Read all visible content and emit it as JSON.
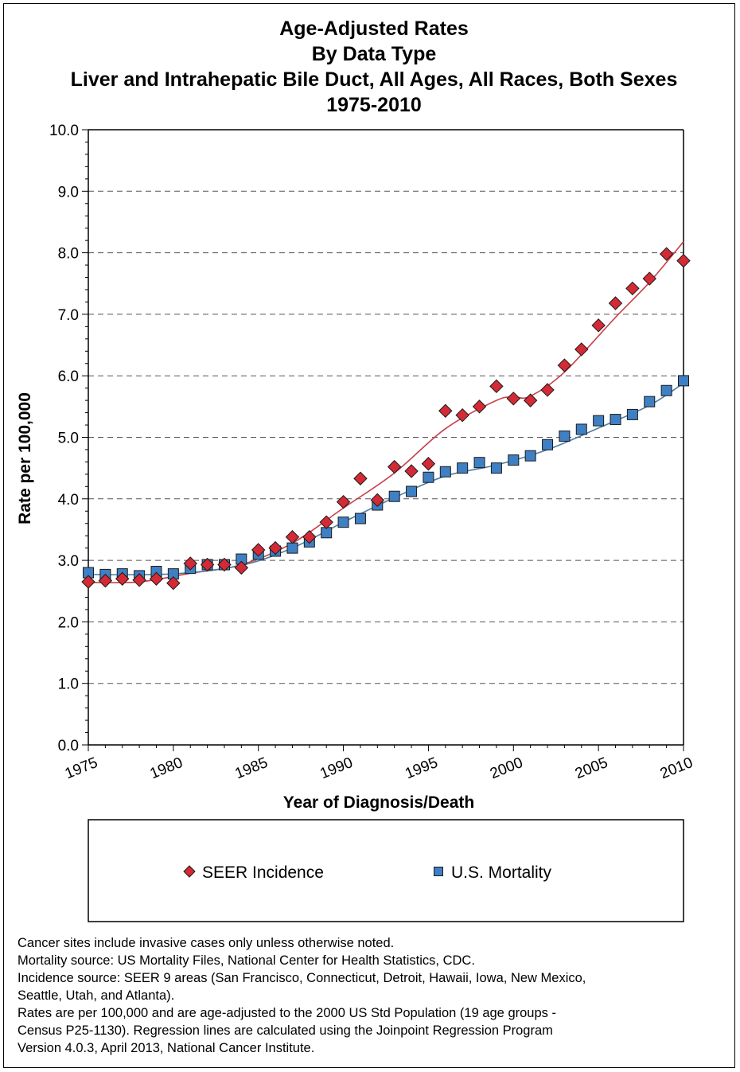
{
  "chart_data": {
    "type": "scatter",
    "title_lines": [
      "Age-Adjusted  Rates",
      "By Data Type",
      "Liver and Intrahepatic Bile Duct, All Ages, All Races, Both Sexes",
      "1975-2010"
    ],
    "xlabel": "Year of Diagnosis/Death",
    "ylabel": "Rate per 100,000",
    "xlim": [
      1975,
      2010
    ],
    "ylim": [
      0,
      10
    ],
    "x_ticks": [
      "1975",
      "1980",
      "1985",
      "1990",
      "1995",
      "2000",
      "2005",
      "2010"
    ],
    "y_ticks": [
      "0.0",
      "1.0",
      "2.0",
      "3.0",
      "4.0",
      "5.0",
      "6.0",
      "7.0",
      "8.0",
      "9.0",
      "10.0"
    ],
    "grid": "horizontal dashed",
    "legend_position": "bottom",
    "x": [
      1975,
      1976,
      1977,
      1978,
      1979,
      1980,
      1981,
      1982,
      1983,
      1984,
      1985,
      1986,
      1987,
      1988,
      1989,
      1990,
      1991,
      1992,
      1993,
      1994,
      1995,
      1996,
      1997,
      1998,
      1999,
      2000,
      2001,
      2002,
      2003,
      2004,
      2005,
      2006,
      2007,
      2008,
      2009,
      2010
    ],
    "series": [
      {
        "name": "SEER Incidence",
        "marker": "diamond",
        "color": "#d42a36",
        "values": [
          2.65,
          2.67,
          2.7,
          2.68,
          2.7,
          2.63,
          2.95,
          2.93,
          2.93,
          2.88,
          3.17,
          3.2,
          3.38,
          3.38,
          3.62,
          3.95,
          4.33,
          3.98,
          4.52,
          4.45,
          4.57,
          5.43,
          5.36,
          5.5,
          5.83,
          5.63,
          5.6,
          5.77,
          6.17,
          6.43,
          6.82,
          7.18,
          7.42,
          7.58,
          7.98,
          7.87
        ],
        "fit": [
          [
            1975,
            2.64
          ],
          [
            1978,
            2.65
          ],
          [
            1981,
            2.79
          ],
          [
            1984,
            2.93
          ],
          [
            1987,
            3.28
          ],
          [
            1990,
            3.85
          ],
          [
            1993,
            4.42
          ],
          [
            1996,
            5.14
          ],
          [
            1999,
            5.6
          ],
          [
            2000,
            5.65
          ],
          [
            2001,
            5.67
          ],
          [
            2003,
            6.06
          ],
          [
            2006,
            6.95
          ],
          [
            2008,
            7.52
          ],
          [
            2010,
            8.18
          ]
        ]
      },
      {
        "name": "U.S. Mortality",
        "marker": "square",
        "color": "#3f7fc3",
        "values": [
          2.8,
          2.77,
          2.78,
          2.75,
          2.82,
          2.78,
          2.87,
          2.93,
          2.93,
          3.02,
          3.1,
          3.15,
          3.2,
          3.3,
          3.45,
          3.62,
          3.68,
          3.9,
          4.04,
          4.12,
          4.35,
          4.44,
          4.5,
          4.59,
          4.5,
          4.63,
          4.7,
          4.88,
          5.02,
          5.13,
          5.27,
          5.29,
          5.37,
          5.58,
          5.76,
          5.92
        ],
        "fit": [
          [
            1975,
            2.77
          ],
          [
            1980,
            2.78
          ],
          [
            1984,
            2.92
          ],
          [
            1987,
            3.2
          ],
          [
            1990,
            3.62
          ],
          [
            1993,
            4.02
          ],
          [
            1996,
            4.37
          ],
          [
            1999,
            4.55
          ],
          [
            2002,
            4.8
          ],
          [
            2005,
            5.15
          ],
          [
            2008,
            5.52
          ],
          [
            2010,
            5.88
          ]
        ]
      }
    ]
  },
  "legend": {
    "items": [
      {
        "label": "SEER Incidence",
        "marker": "diamond",
        "color": "#d42a36"
      },
      {
        "label": "U.S. Mortality",
        "marker": "square",
        "color": "#3f7fc3"
      }
    ]
  },
  "notes": [
    "Cancer sites include invasive cases only unless otherwise noted.",
    "Mortality source: US Mortality Files, National Center for Health Statistics, CDC.",
    "Incidence source: SEER 9 areas (San Francisco, Connecticut, Detroit, Hawaii, Iowa, New Mexico,",
    "Seattle, Utah, and Atlanta).",
    "Rates are per 100,000 and are age-adjusted to the 2000 US Std Population (19 age groups -",
    "Census P25-1130). Regression lines are calculated using the Joinpoint Regression Program",
    "Version 4.0.3, April 2013, National Cancer Institute."
  ],
  "colors": {
    "incidence_fit_line": "#c8404a",
    "mortality_fit_line": "#4f7f9f",
    "grid": "#555555"
  }
}
